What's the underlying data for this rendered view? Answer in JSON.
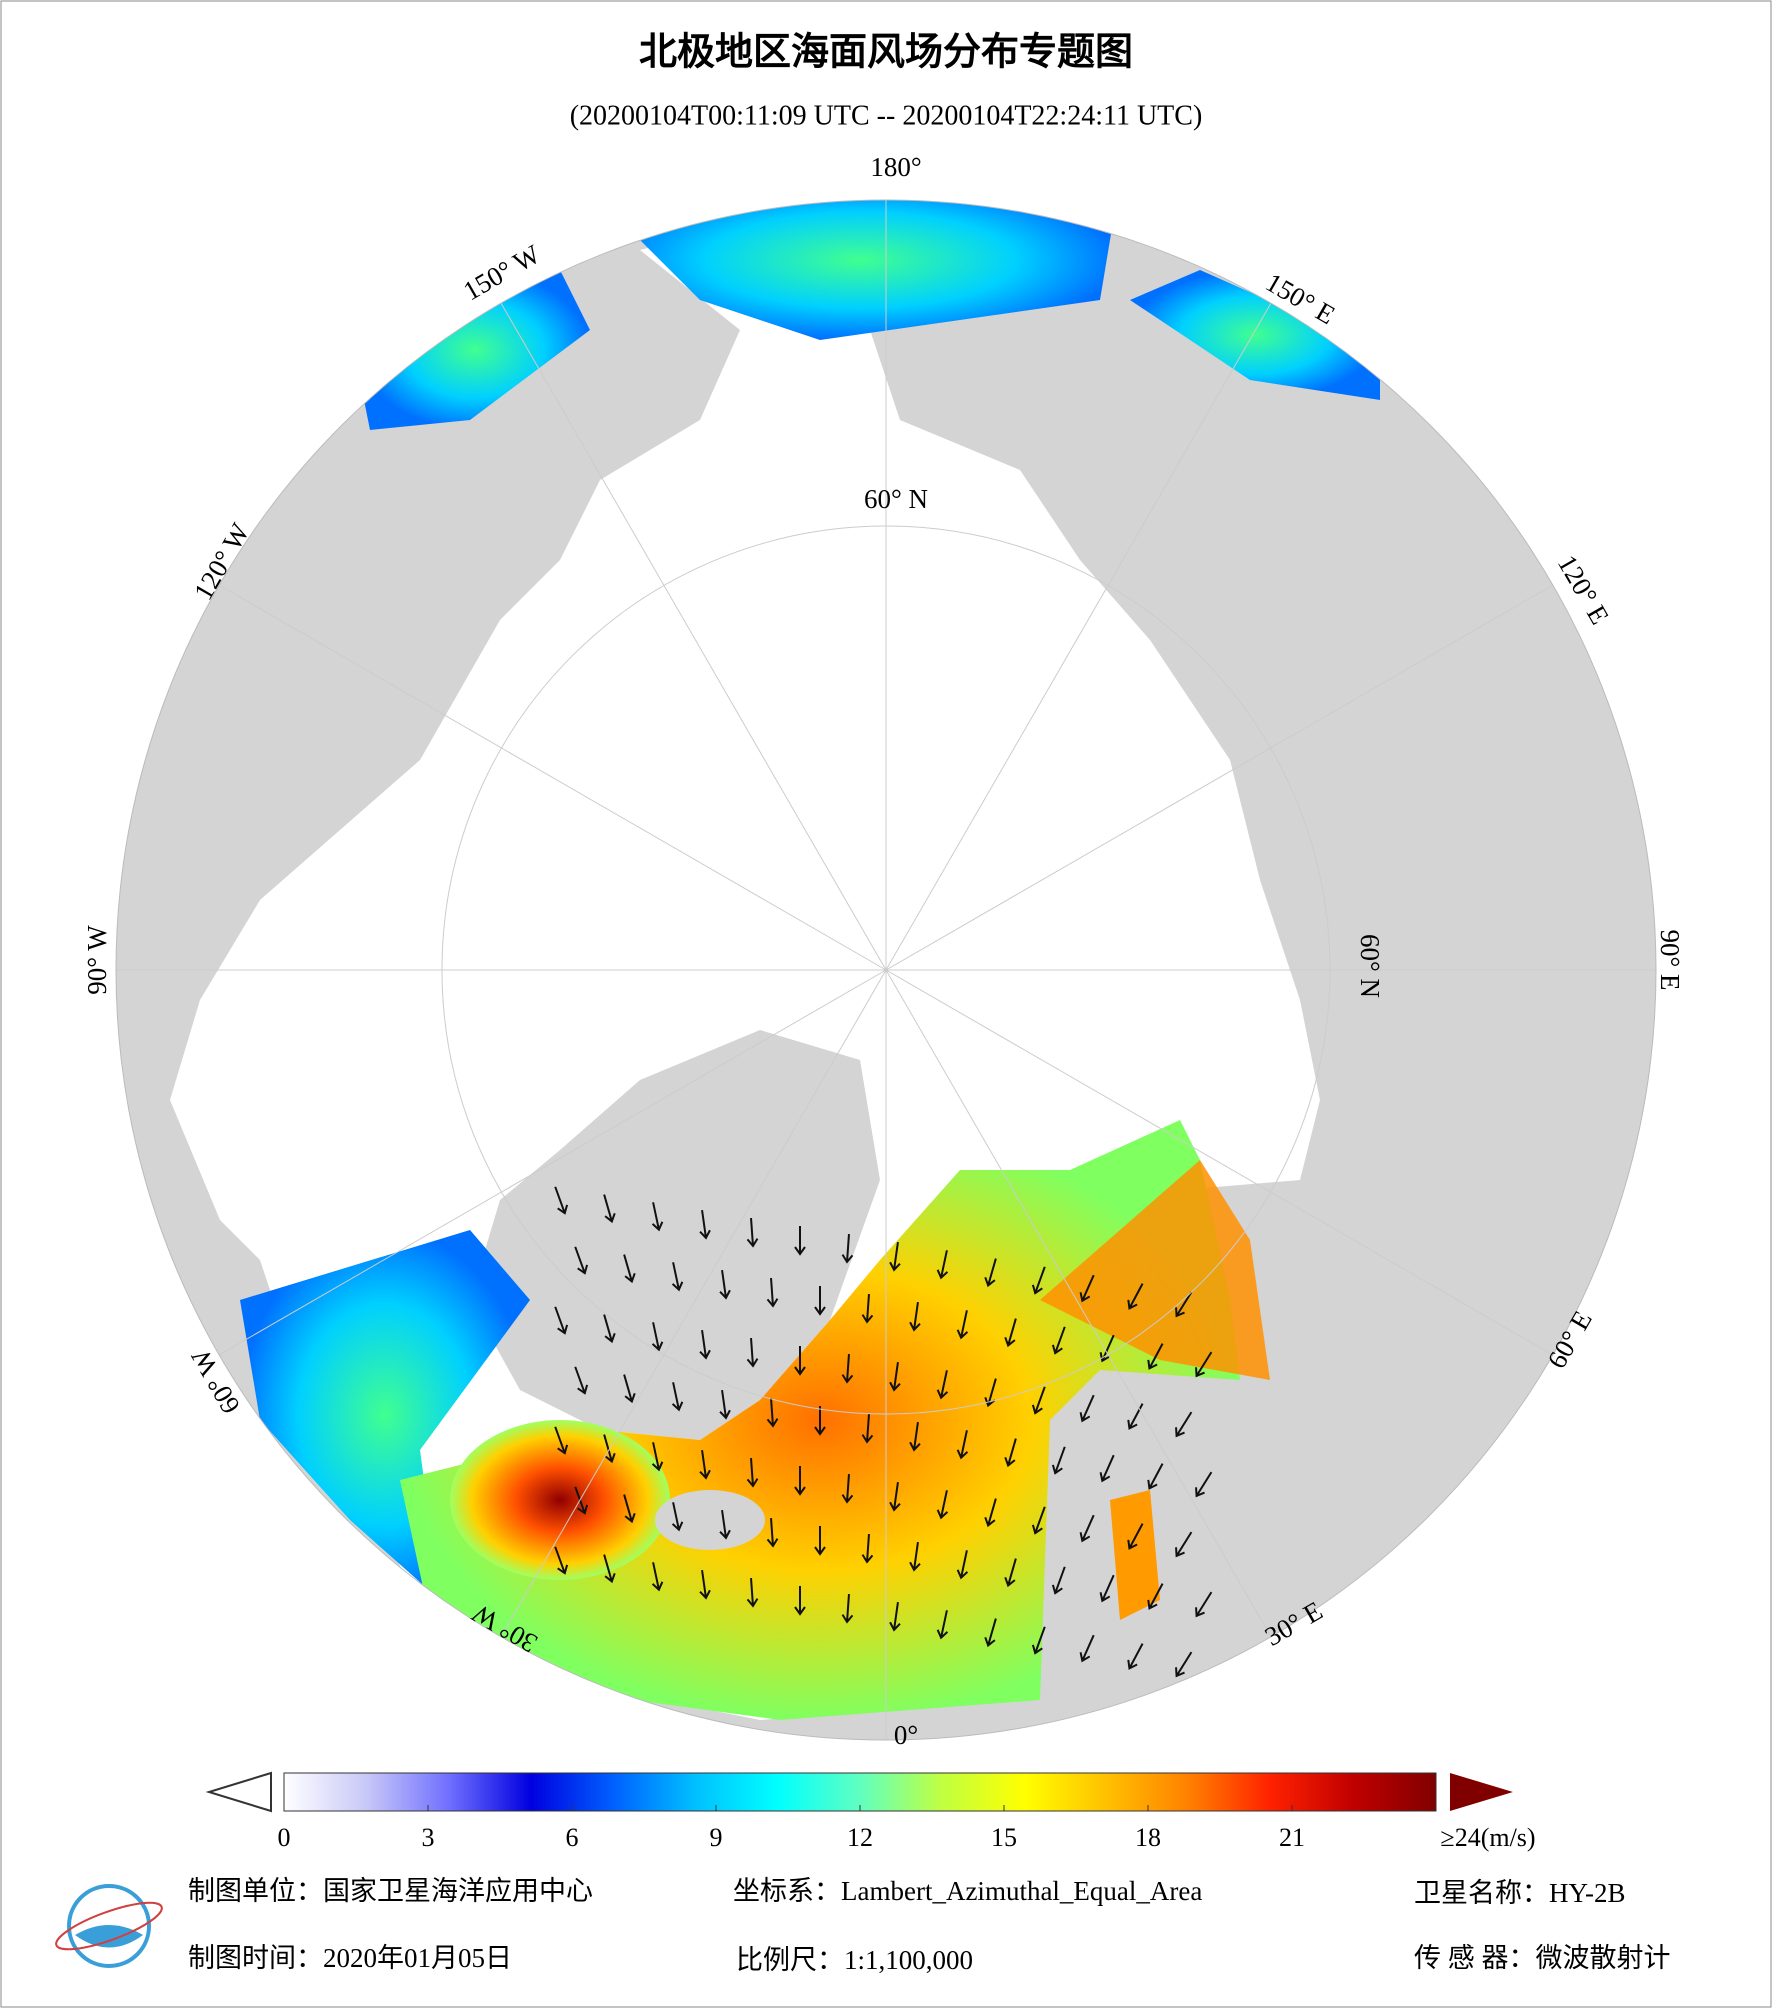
{
  "header": {
    "title": "北极地区海面风场分布专题图",
    "subtitle": "(20200104T00:11:09 UTC -- 20200104T22:24:11 UTC)"
  },
  "map": {
    "labels": [
      "180°",
      "150° W",
      "150° E",
      "120° W",
      "120° E",
      "90° W",
      "90° E",
      "60° W",
      "60° E",
      "30° W",
      "30° E",
      "0°",
      "60° N",
      "60° N"
    ]
  },
  "colorbar": {
    "range": [
      0,
      24
    ],
    "ticks": [
      0,
      3,
      6,
      9,
      12,
      15,
      18,
      21,
      {
        "value": 24,
        "label": "≥24(m/s)"
      }
    ],
    "colors": [
      "#ffffff",
      "#c8c8f8",
      "#7070ff",
      "#0000e0",
      "#0060ff",
      "#00c0ff",
      "#00ffff",
      "#60ffc0",
      "#c0ff40",
      "#ffff00",
      "#ffc000",
      "#ff8000",
      "#ff2000",
      "#c00000",
      "#800000"
    ]
  },
  "footer": {
    "unit": "制图单位：国家卫星海洋应用中心",
    "coords": "坐标系：Lambert_Azimuthal_Equal_Area",
    "satellite": "卫星名称：HY-2B",
    "time": "制图时间：2020年01月05日",
    "scale": "比例尺：1:1,100,000",
    "sensor": "传 感 器：微波散射计"
  }
}
